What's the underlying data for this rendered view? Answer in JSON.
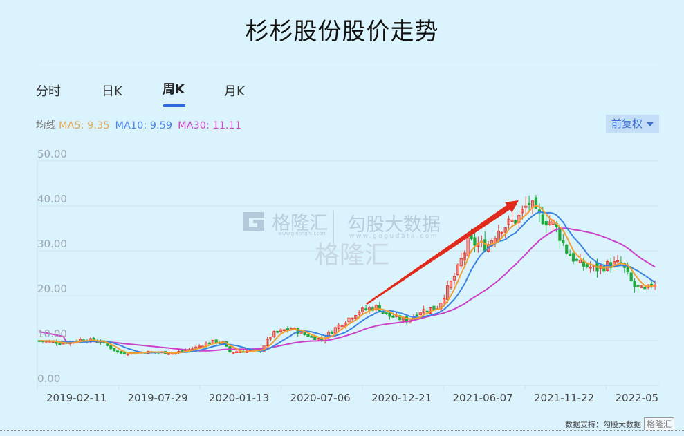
{
  "title": "杉杉股份股价走势",
  "tabs": [
    {
      "label": "分时",
      "active": false
    },
    {
      "label": "日K",
      "active": false
    },
    {
      "label": "周K",
      "active": true
    },
    {
      "label": "月K",
      "active": false
    }
  ],
  "ma": {
    "label": "均线",
    "ma5": "MA5: 9.35",
    "ma10": "MA10: 9.59",
    "ma30": "MA30: 11.11"
  },
  "adjust_dropdown": {
    "label": "前复权"
  },
  "watermark": {
    "brand1": "格隆汇",
    "brand1_url": "www.gelonghui.com",
    "brand2": "勾股大数据",
    "brand2_url": "www.gogudata.com",
    "center": "格隆汇"
  },
  "footer": {
    "text": "数据支持：勾股大数据",
    "logo": "格隆汇"
  },
  "colors": {
    "up": "#e8392c",
    "down": "#1fa83b",
    "ma5": "#f0a030",
    "ma10": "#3a82e0",
    "ma30": "#cc3fc8",
    "arrow": "#e02a1c",
    "grid": "#cfe6f0"
  },
  "chart_data": {
    "type": "candlestick",
    "title": "杉杉股份股价走势",
    "period": "weekly",
    "xlabel": "",
    "ylabel": "",
    "ylim": [
      0,
      50
    ],
    "yticks": [
      "0.00",
      "10.00",
      "20.00",
      "30.00",
      "40.00",
      "50.00"
    ],
    "xticks": [
      "2019-02-11",
      "2019-07-29",
      "2020-01-13",
      "2020-07-06",
      "2020-12-21",
      "2021-06-07",
      "2021-11-22",
      "2022-05"
    ],
    "grid": true,
    "legend": [
      "MA5: 9.35",
      "MA10: 9.59",
      "MA30: 11.11"
    ],
    "annotation": "red upward arrow from ~2020-11 to ~2021-08 indicating uptrend",
    "approx_close_by_tick": {
      "2019-02-11": 10.0,
      "2019-07-29": 7.5,
      "2020-01-13": 9.5,
      "2020-07-06": 12.5,
      "2020-12-21": 16.0,
      "2021-06-07": 27.0,
      "2021-11-22": 34.0,
      "2022-05": 23.0
    },
    "peak": {
      "approx_date": "2021-10",
      "high": 43.5
    },
    "series": [
      {
        "name": "MA5",
        "color": "#f0a030"
      },
      {
        "name": "MA10",
        "color": "#3a82e0"
      },
      {
        "name": "MA30",
        "color": "#cc3fc8"
      }
    ]
  }
}
